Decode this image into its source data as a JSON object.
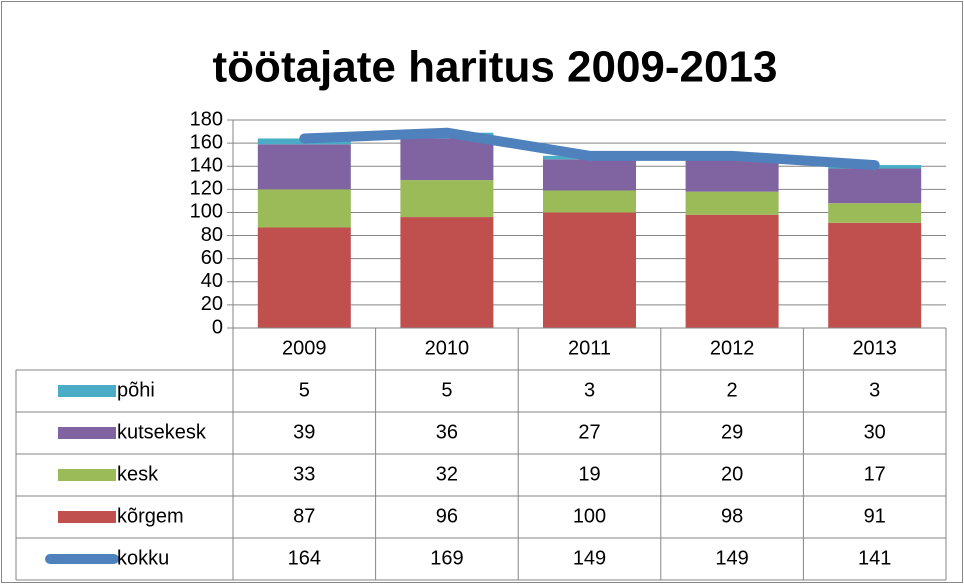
{
  "chart_data": {
    "type": "bar",
    "stacked": true,
    "title": "töötajate haritus 2009-2013",
    "categories": [
      "2009",
      "2010",
      "2011",
      "2012",
      "2013"
    ],
    "series": [
      {
        "name": "põhi",
        "color": "#4bacc6",
        "values": [
          5,
          5,
          3,
          2,
          3
        ]
      },
      {
        "name": "kutsekesk",
        "color": "#8064a2",
        "values": [
          39,
          36,
          27,
          29,
          30
        ]
      },
      {
        "name": "kesk",
        "color": "#9bbb59",
        "values": [
          33,
          32,
          19,
          20,
          17
        ]
      },
      {
        "name": "kõrgem",
        "color": "#c0504d",
        "values": [
          87,
          96,
          100,
          98,
          91
        ]
      },
      {
        "name": "kokku",
        "color": "#4f81bd",
        "type": "line",
        "values": [
          164,
          169,
          149,
          149,
          141
        ]
      }
    ],
    "ylim": [
      0,
      180
    ],
    "yticks": [
      0,
      20,
      40,
      60,
      80,
      100,
      120,
      140,
      160,
      180
    ],
    "grid": true,
    "data_table": true
  }
}
